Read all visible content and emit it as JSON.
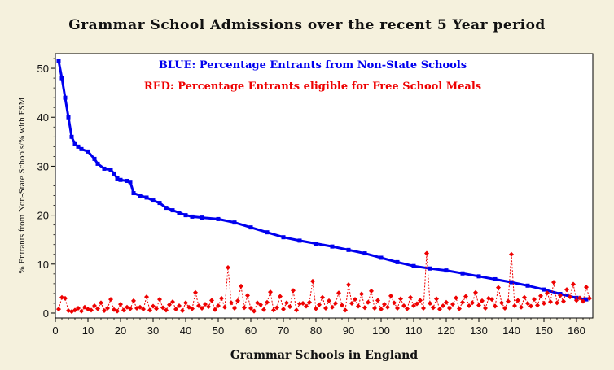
{
  "chart_data": {
    "type": "line",
    "title": "Grammar School Admissions over the recent 5 Year period",
    "xlabel": "Grammar Schools in England",
    "ylabel": "% Entrants from Non-State Schools/% with FSM",
    "xlim": [
      0,
      165
    ],
    "ylim": [
      -1,
      53
    ],
    "x_ticks": [
      0,
      10,
      20,
      30,
      40,
      50,
      60,
      70,
      80,
      90,
      100,
      110,
      120,
      130,
      140,
      150,
      160
    ],
    "y_ticks": [
      0,
      10,
      20,
      30,
      40,
      50
    ],
    "grid": false,
    "annotations": [
      "BLUE: Percentage Entrants from Non-State Schools",
      "RED: Percentage Entrants eligible for Free School Meals"
    ],
    "series": [
      {
        "color": "#0000ee",
        "marker": "square",
        "x": [
          1,
          2,
          3,
          4,
          5,
          6,
          7,
          8,
          10,
          12,
          13,
          15,
          17,
          18,
          19,
          20,
          22,
          23,
          24,
          26,
          28,
          30,
          32,
          34,
          36,
          38,
          40,
          42,
          45,
          50,
          55,
          60,
          65,
          70,
          75,
          80,
          85,
          90,
          95,
          100,
          105,
          110,
          115,
          120,
          125,
          130,
          135,
          140,
          145,
          150,
          155,
          160,
          163
        ],
        "y": [
          51.5,
          48,
          44,
          40,
          36,
          34.5,
          34,
          33.5,
          33,
          31.5,
          30.5,
          29.5,
          29.3,
          28.5,
          27.5,
          27.2,
          27,
          26.8,
          24.5,
          24,
          23.6,
          23,
          22.5,
          21.5,
          21,
          20.5,
          20,
          19.7,
          19.5,
          19.2,
          18.5,
          17.5,
          16.5,
          15.5,
          14.8,
          14.2,
          13.6,
          12.9,
          12.2,
          11.3,
          10.4,
          9.6,
          9.1,
          8.7,
          8.1,
          7.5,
          6.9,
          6.3,
          5.6,
          4.8,
          3.9,
          3.1,
          2.8
        ]
      },
      {
        "color": "#ee0000",
        "marker": "diamond",
        "x": [
          1,
          2,
          3,
          4,
          5,
          6,
          7,
          8,
          9,
          10,
          11,
          12,
          13,
          14,
          15,
          16,
          17,
          18,
          19,
          20,
          21,
          22,
          23,
          24,
          25,
          26,
          27,
          28,
          29,
          30,
          31,
          32,
          33,
          34,
          35,
          36,
          37,
          38,
          39,
          40,
          41,
          42,
          43,
          44,
          45,
          46,
          47,
          48,
          49,
          50,
          51,
          52,
          53,
          54,
          55,
          56,
          57,
          58,
          59,
          60,
          61,
          62,
          63,
          64,
          65,
          66,
          67,
          68,
          69,
          70,
          71,
          72,
          73,
          74,
          75,
          76,
          77,
          78,
          79,
          80,
          81,
          82,
          83,
          84,
          85,
          86,
          87,
          88,
          89,
          90,
          91,
          92,
          93,
          94,
          95,
          96,
          97,
          98,
          99,
          100,
          101,
          102,
          103,
          104,
          105,
          106,
          107,
          108,
          109,
          110,
          111,
          112,
          113,
          114,
          115,
          116,
          117,
          118,
          119,
          120,
          121,
          122,
          123,
          124,
          125,
          126,
          127,
          128,
          129,
          130,
          131,
          132,
          133,
          134,
          135,
          136,
          137,
          138,
          139,
          140,
          141,
          142,
          143,
          144,
          145,
          146,
          147,
          148,
          149,
          150,
          151,
          152,
          153,
          154,
          155,
          156,
          157,
          158,
          159,
          160,
          161,
          162,
          163,
          164
        ],
        "y": [
          0.8,
          3.2,
          3.0,
          0.5,
          0.3,
          0.6,
          1.0,
          0.4,
          1.2,
          0.8,
          0.6,
          1.5,
          0.9,
          2.1,
          0.5,
          1.0,
          2.8,
          0.7,
          0.4,
          1.8,
          0.6,
          1.2,
          0.9,
          2.5,
          1.0,
          1.2,
          0.8,
          3.3,
          0.6,
          1.4,
          0.9,
          2.8,
          1.1,
          0.6,
          1.7,
          2.3,
          0.8,
          1.5,
          0.5,
          2.1,
          1.2,
          0.9,
          4.2,
          1.5,
          1.0,
          1.8,
          1.3,
          2.6,
          0.7,
          1.5,
          3.0,
          1.2,
          9.3,
          2.1,
          1.0,
          2.5,
          5.5,
          1.1,
          3.6,
          1.0,
          0.4,
          2.1,
          1.7,
          0.7,
          2.2,
          4.3,
          0.6,
          1.1,
          3.4,
          0.8,
          2.1,
          1.3,
          4.6,
          0.6,
          1.9,
          2.0,
          1.4,
          2.2,
          6.5,
          0.9,
          1.7,
          3.2,
          1.0,
          2.5,
          1.2,
          2.0,
          4.1,
          1.6,
          0.6,
          5.8,
          2.0,
          2.8,
          1.4,
          3.9,
          1.1,
          2.2,
          4.5,
          1.0,
          2.6,
          0.8,
          1.8,
          1.2,
          3.5,
          2.1,
          1.0,
          2.9,
          1.5,
          0.9,
          3.2,
          1.5,
          1.9,
          2.6,
          1.0,
          12.2,
          2.0,
          1.1,
          2.9,
          0.8,
          1.5,
          2.2,
          1.0,
          1.8,
          3.1,
          0.9,
          2.2,
          3.4,
          1.5,
          2.1,
          4.2,
          1.6,
          2.5,
          1.0,
          3.0,
          2.8,
          1.4,
          5.2,
          2.1,
          1.0,
          2.4,
          12.0,
          1.5,
          2.6,
          1.2,
          3.2,
          2.0,
          1.4,
          2.8,
          1.6,
          3.5,
          2.0,
          4.1,
          2.3,
          6.3,
          2.1,
          3.6,
          2.4,
          4.8,
          3.3,
          5.9,
          2.6,
          3.1,
          2.4,
          5.3,
          3.0
        ]
      }
    ]
  }
}
